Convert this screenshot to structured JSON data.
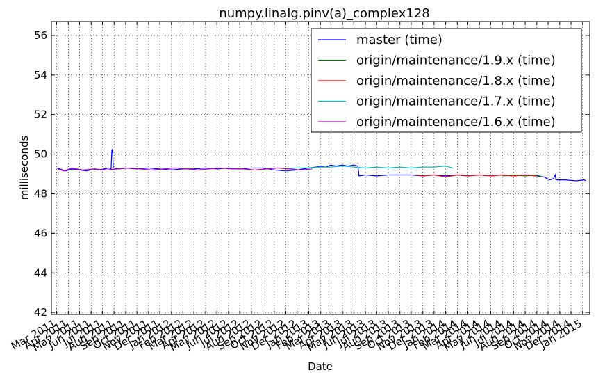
{
  "chart_data": {
    "type": "line",
    "title": "numpy.linalg.pinv(a)_complex128",
    "xlabel": "Date",
    "ylabel": "milliseconds",
    "xlim": [
      "2011-02-15",
      "2015-01-20"
    ],
    "ylim": [
      41.9,
      56.7
    ],
    "yticks": [
      42,
      44,
      46,
      48,
      50,
      52,
      54,
      56
    ],
    "xticks": [
      {
        "label": "Mar 2011",
        "date": "2011-03-01"
      },
      {
        "label": "Apr 2011",
        "date": "2011-04-01"
      },
      {
        "label": "May 2011",
        "date": "2011-05-01"
      },
      {
        "label": "Jun 2011",
        "date": "2011-06-01"
      },
      {
        "label": "Jul 2011",
        "date": "2011-07-01"
      },
      {
        "label": "Aug 2011",
        "date": "2011-08-01"
      },
      {
        "label": "Sep 2011",
        "date": "2011-09-01"
      },
      {
        "label": "Oct 2011",
        "date": "2011-10-01"
      },
      {
        "label": "Nov 2011",
        "date": "2011-11-01"
      },
      {
        "label": "Dec 2011",
        "date": "2011-12-01"
      },
      {
        "label": "Jan 2012",
        "date": "2012-01-01"
      },
      {
        "label": "Feb 2012",
        "date": "2012-02-01"
      },
      {
        "label": "Mar 2012",
        "date": "2012-03-01"
      },
      {
        "label": "Apr 2012",
        "date": "2012-04-01"
      },
      {
        "label": "May 2012",
        "date": "2012-05-01"
      },
      {
        "label": "Jun 2012",
        "date": "2012-06-01"
      },
      {
        "label": "Jul 2012",
        "date": "2012-07-01"
      },
      {
        "label": "Aug 2012",
        "date": "2012-08-01"
      },
      {
        "label": "Sep 2012",
        "date": "2012-09-01"
      },
      {
        "label": "Oct 2012",
        "date": "2012-10-01"
      },
      {
        "label": "Nov 2012",
        "date": "2012-11-01"
      },
      {
        "label": "Dec 2012",
        "date": "2012-12-01"
      },
      {
        "label": "Jan 2013",
        "date": "2013-01-01"
      },
      {
        "label": "Feb 2013",
        "date": "2013-02-01"
      },
      {
        "label": "Mar 2013",
        "date": "2013-03-01"
      },
      {
        "label": "Apr 2013",
        "date": "2013-04-01"
      },
      {
        "label": "May 2013",
        "date": "2013-05-01"
      },
      {
        "label": "Jun 2013",
        "date": "2013-06-01"
      },
      {
        "label": "Jul 2013",
        "date": "2013-07-01"
      },
      {
        "label": "Aug 2013",
        "date": "2013-08-01"
      },
      {
        "label": "Sep 2013",
        "date": "2013-09-01"
      },
      {
        "label": "Oct 2013",
        "date": "2013-10-01"
      },
      {
        "label": "Nov 2013",
        "date": "2013-11-01"
      },
      {
        "label": "Dec 2013",
        "date": "2013-12-01"
      },
      {
        "label": "Jan 2014",
        "date": "2014-01-01"
      },
      {
        "label": "Feb 2014",
        "date": "2014-02-01"
      },
      {
        "label": "Mar 2014",
        "date": "2014-03-01"
      },
      {
        "label": "Apr 2014",
        "date": "2014-04-01"
      },
      {
        "label": "May 2014",
        "date": "2014-05-01"
      },
      {
        "label": "Jun 2014",
        "date": "2014-06-01"
      },
      {
        "label": "Jul 2014",
        "date": "2014-07-01"
      },
      {
        "label": "Aug 2014",
        "date": "2014-08-01"
      },
      {
        "label": "Sep 2014",
        "date": "2014-09-01"
      },
      {
        "label": "Oct 2014",
        "date": "2014-10-01"
      },
      {
        "label": "Nov 2014",
        "date": "2014-11-01"
      },
      {
        "label": "Dec 2014",
        "date": "2014-12-01"
      },
      {
        "label": "Jan 2015",
        "date": "2015-01-01"
      }
    ],
    "grid": true,
    "legend_position": "top-right",
    "series": [
      {
        "name": "master (time)",
        "color": "#0000ff",
        "points": [
          [
            "2011-03-01",
            49.3
          ],
          [
            "2011-03-10",
            49.25
          ],
          [
            "2011-03-25",
            49.15
          ],
          [
            "2011-04-10",
            49.25
          ],
          [
            "2011-05-01",
            49.2
          ],
          [
            "2011-05-20",
            49.15
          ],
          [
            "2011-06-05",
            49.25
          ],
          [
            "2011-06-20",
            49.2
          ],
          [
            "2011-07-05",
            49.25
          ],
          [
            "2011-07-18",
            49.3
          ],
          [
            "2011-07-24",
            49.25
          ],
          [
            "2011-07-26",
            50.2
          ],
          [
            "2011-07-28",
            50.25
          ],
          [
            "2011-07-30",
            49.3
          ],
          [
            "2011-08-15",
            49.25
          ],
          [
            "2011-09-01",
            49.3
          ],
          [
            "2011-10-01",
            49.25
          ],
          [
            "2011-11-01",
            49.3
          ],
          [
            "2011-12-01",
            49.25
          ],
          [
            "2012-01-01",
            49.2
          ],
          [
            "2012-02-01",
            49.25
          ],
          [
            "2012-03-01",
            49.25
          ],
          [
            "2012-04-01",
            49.3
          ],
          [
            "2012-05-01",
            49.25
          ],
          [
            "2012-06-01",
            49.3
          ],
          [
            "2012-07-01",
            49.25
          ],
          [
            "2012-08-01",
            49.3
          ],
          [
            "2012-09-01",
            49.3
          ],
          [
            "2012-10-01",
            49.2
          ],
          [
            "2012-11-01",
            49.15
          ],
          [
            "2012-12-01",
            49.2
          ],
          [
            "2013-01-01",
            49.3
          ],
          [
            "2013-01-20",
            49.35
          ],
          [
            "2013-02-01",
            49.4
          ],
          [
            "2013-02-15",
            49.35
          ],
          [
            "2013-03-01",
            49.45
          ],
          [
            "2013-03-15",
            49.4
          ],
          [
            "2013-04-01",
            49.45
          ],
          [
            "2013-04-15",
            49.4
          ],
          [
            "2013-05-01",
            49.45
          ],
          [
            "2013-05-12",
            49.4
          ],
          [
            "2013-05-15",
            48.9
          ],
          [
            "2013-06-01",
            48.95
          ],
          [
            "2013-07-01",
            48.9
          ],
          [
            "2013-08-01",
            48.95
          ],
          [
            "2013-09-01",
            48.95
          ],
          [
            "2013-10-01",
            48.95
          ],
          [
            "2013-11-01",
            48.9
          ],
          [
            "2013-12-01",
            48.95
          ],
          [
            "2014-01-01",
            48.9
          ],
          [
            "2014-02-01",
            48.95
          ],
          [
            "2014-03-01",
            48.9
          ],
          [
            "2014-04-01",
            48.95
          ],
          [
            "2014-05-01",
            48.9
          ],
          [
            "2014-06-01",
            48.95
          ],
          [
            "2014-07-01",
            48.9
          ],
          [
            "2014-08-01",
            48.95
          ],
          [
            "2014-09-01",
            48.9
          ],
          [
            "2014-09-20",
            48.85
          ],
          [
            "2014-10-05",
            48.7
          ],
          [
            "2014-10-15",
            48.75
          ],
          [
            "2014-10-20",
            48.95
          ],
          [
            "2014-10-22",
            48.7
          ],
          [
            "2014-11-15",
            48.7
          ],
          [
            "2014-12-15",
            48.65
          ],
          [
            "2015-01-05",
            48.7
          ],
          [
            "2015-01-10",
            48.65
          ]
        ]
      },
      {
        "name": "origin/maintenance/1.9.x (time)",
        "color": "#008000",
        "points": [
          [
            "2014-06-01",
            48.9
          ],
          [
            "2014-07-01",
            48.95
          ],
          [
            "2014-08-01",
            48.9
          ],
          [
            "2014-09-01",
            48.95
          ],
          [
            "2014-09-15",
            48.85
          ]
        ]
      },
      {
        "name": "origin/maintenance/1.8.x (time)",
        "color": "#ff0000",
        "points": [
          [
            "2013-10-15",
            48.95
          ],
          [
            "2013-11-01",
            48.9
          ],
          [
            "2013-12-01",
            48.95
          ],
          [
            "2014-01-01",
            48.85
          ],
          [
            "2014-02-01",
            48.95
          ],
          [
            "2014-03-01",
            48.9
          ],
          [
            "2014-04-01",
            48.95
          ],
          [
            "2014-05-01",
            48.9
          ],
          [
            "2014-06-01",
            48.95
          ],
          [
            "2014-07-01",
            48.9
          ],
          [
            "2014-08-01",
            48.95
          ],
          [
            "2014-09-01",
            48.9
          ]
        ]
      },
      {
        "name": "origin/maintenance/1.7.x (time)",
        "color": "#00bfbf",
        "points": [
          [
            "2012-11-01",
            49.25
          ],
          [
            "2012-12-01",
            49.3
          ],
          [
            "2013-01-01",
            49.3
          ],
          [
            "2013-02-01",
            49.35
          ],
          [
            "2013-03-01",
            49.35
          ],
          [
            "2013-04-01",
            49.4
          ],
          [
            "2013-05-01",
            49.35
          ],
          [
            "2013-06-01",
            49.3
          ],
          [
            "2013-07-01",
            49.35
          ],
          [
            "2013-08-01",
            49.3
          ],
          [
            "2013-09-01",
            49.35
          ],
          [
            "2013-10-01",
            49.3
          ],
          [
            "2013-11-01",
            49.35
          ],
          [
            "2013-12-01",
            49.35
          ],
          [
            "2014-01-01",
            49.4
          ],
          [
            "2014-01-20",
            49.3
          ]
        ]
      },
      {
        "name": "origin/maintenance/1.6.x (time)",
        "color": "#bf00bf",
        "points": [
          [
            "2011-03-05",
            49.25
          ],
          [
            "2011-03-20",
            49.15
          ],
          [
            "2011-04-10",
            49.3
          ],
          [
            "2011-05-10",
            49.2
          ],
          [
            "2011-06-10",
            49.25
          ],
          [
            "2011-07-10",
            49.2
          ],
          [
            "2011-08-10",
            49.25
          ],
          [
            "2011-09-10",
            49.3
          ],
          [
            "2011-10-10",
            49.25
          ],
          [
            "2011-11-10",
            49.2
          ],
          [
            "2011-12-10",
            49.25
          ],
          [
            "2012-01-10",
            49.3
          ],
          [
            "2012-02-10",
            49.25
          ],
          [
            "2012-03-10",
            49.2
          ],
          [
            "2012-04-10",
            49.25
          ],
          [
            "2012-05-10",
            49.3
          ],
          [
            "2012-06-10",
            49.25
          ],
          [
            "2012-07-10",
            49.25
          ],
          [
            "2012-08-10",
            49.2
          ],
          [
            "2012-09-10",
            49.25
          ],
          [
            "2012-10-10",
            49.3
          ],
          [
            "2012-11-10",
            49.25
          ],
          [
            "2012-12-10",
            49.2
          ],
          [
            "2013-01-10",
            49.25
          ]
        ]
      }
    ]
  }
}
